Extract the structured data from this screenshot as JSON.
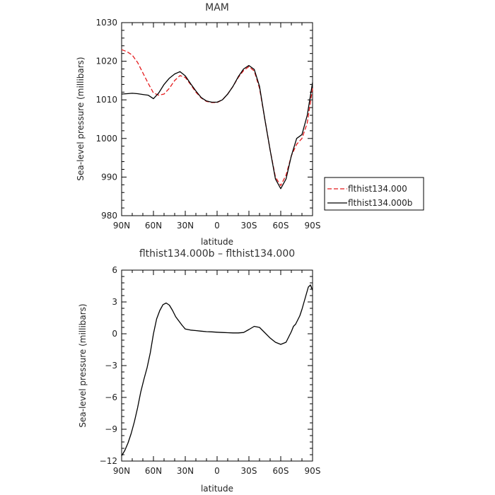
{
  "chart_data": [
    {
      "type": "line",
      "title": "MAM",
      "xlabel": "latitude",
      "ylabel": "Sea-level pressure (millibars)",
      "xlim": [
        90,
        -90
      ],
      "ylim": [
        980,
        1030
      ],
      "x_ticks": [
        90,
        60,
        30,
        0,
        -30,
        -60,
        -90
      ],
      "x_tick_labels": [
        "90N",
        "60N",
        "30N",
        "0",
        "30S",
        "60S",
        "90S"
      ],
      "y_ticks": [
        980,
        990,
        1000,
        1010,
        1020,
        1030
      ],
      "y_tick_labels": [
        "980",
        "990",
        "1000",
        "1010",
        "1020",
        "1030"
      ],
      "legend_position": "right",
      "series": [
        {
          "name": "flthist134.000",
          "color": "#e41a1c",
          "dash": true,
          "x": [
            90,
            85,
            80,
            75,
            70,
            65,
            60,
            55,
            50,
            45,
            40,
            35,
            30,
            25,
            20,
            15,
            10,
            5,
            0,
            -5,
            -10,
            -15,
            -20,
            -25,
            -30,
            -35,
            -40,
            -45,
            -50,
            -55,
            -60,
            -65,
            -70,
            -75,
            -80,
            -85,
            -90
          ],
          "y": [
            1023,
            1022.5,
            1021.6,
            1019.7,
            1017,
            1014.3,
            1011.8,
            1011.2,
            1011.5,
            1013.0,
            1015.0,
            1016.3,
            1015.8,
            1014,
            1012,
            1010.5,
            1009.6,
            1009.3,
            1009.3,
            1010,
            1011.5,
            1013.5,
            1015.8,
            1017.6,
            1018.6,
            1017.5,
            1013,
            1005,
            997,
            990,
            987.8,
            990.5,
            995.5,
            998.5,
            1000,
            1004,
            1013
          ]
        },
        {
          "name": "flthist134.000b",
          "color": "#000000",
          "dash": false,
          "x": [
            90,
            85,
            80,
            75,
            70,
            65,
            60,
            55,
            50,
            45,
            40,
            35,
            30,
            25,
            20,
            15,
            10,
            5,
            0,
            -5,
            -10,
            -15,
            -20,
            -25,
            -30,
            -35,
            -40,
            -45,
            -50,
            -55,
            -60,
            -65,
            -70,
            -75,
            -80,
            -85,
            -90
          ],
          "y": [
            1011.5,
            1011.6,
            1011.7,
            1011.6,
            1011.4,
            1011.2,
            1010.3,
            1011.8,
            1014,
            1015.6,
            1016.7,
            1017.3,
            1016.2,
            1014.2,
            1012.3,
            1010.6,
            1009.7,
            1009.4,
            1009.4,
            1010,
            1011.5,
            1013.5,
            1016,
            1018,
            1018.9,
            1017.9,
            1013.5,
            1005,
            997,
            989.5,
            987,
            989.5,
            995.5,
            1000,
            1001,
            1006,
            1014.5
          ]
        }
      ]
    },
    {
      "type": "line",
      "title": "flthist134.000b – flthist134.000",
      "xlabel": "latitude",
      "ylabel": "Sea-level pressure (millibars)",
      "xlim": [
        90,
        -90
      ],
      "ylim": [
        -12,
        6
      ],
      "x_ticks": [
        90,
        60,
        30,
        0,
        -30,
        -60,
        -90
      ],
      "x_tick_labels": [
        "90N",
        "60N",
        "30N",
        "0",
        "30S",
        "60S",
        "90S"
      ],
      "y_ticks": [
        -12,
        -9,
        -6,
        -3,
        0,
        3,
        6
      ],
      "y_tick_labels": [
        "−12",
        "−9",
        "−6",
        "−3",
        "0",
        "3",
        "6"
      ],
      "series": [
        {
          "color": "#000000",
          "x": [
            90,
            87,
            84,
            81,
            78,
            75,
            72,
            69,
            66,
            63,
            60,
            57,
            54,
            51,
            48,
            45,
            42,
            39,
            36,
            33,
            30,
            25,
            20,
            15,
            10,
            5,
            0,
            -5,
            -10,
            -15,
            -20,
            -25,
            -30,
            -35,
            -40,
            -45,
            -50,
            -55,
            -60,
            -65,
            -70,
            -72,
            -74,
            -76,
            -78,
            -80,
            -82,
            -84,
            -86,
            -88,
            -90
          ],
          "y": [
            -11.5,
            -11.0,
            -10.3,
            -9.4,
            -8.3,
            -7.0,
            -5.5,
            -4.3,
            -3.2,
            -1.8,
            0.0,
            1.4,
            2.2,
            2.75,
            2.9,
            2.7,
            2.2,
            1.6,
            1.2,
            0.8,
            0.45,
            0.35,
            0.3,
            0.25,
            0.2,
            0.18,
            0.15,
            0.12,
            0.1,
            0.08,
            0.08,
            0.12,
            0.4,
            0.7,
            0.6,
            0.1,
            -0.4,
            -0.8,
            -1.0,
            -0.8,
            0.2,
            0.7,
            0.9,
            1.3,
            1.7,
            2.3,
            3.0,
            3.7,
            4.4,
            4.6,
            4.1
          ]
        }
      ]
    }
  ]
}
